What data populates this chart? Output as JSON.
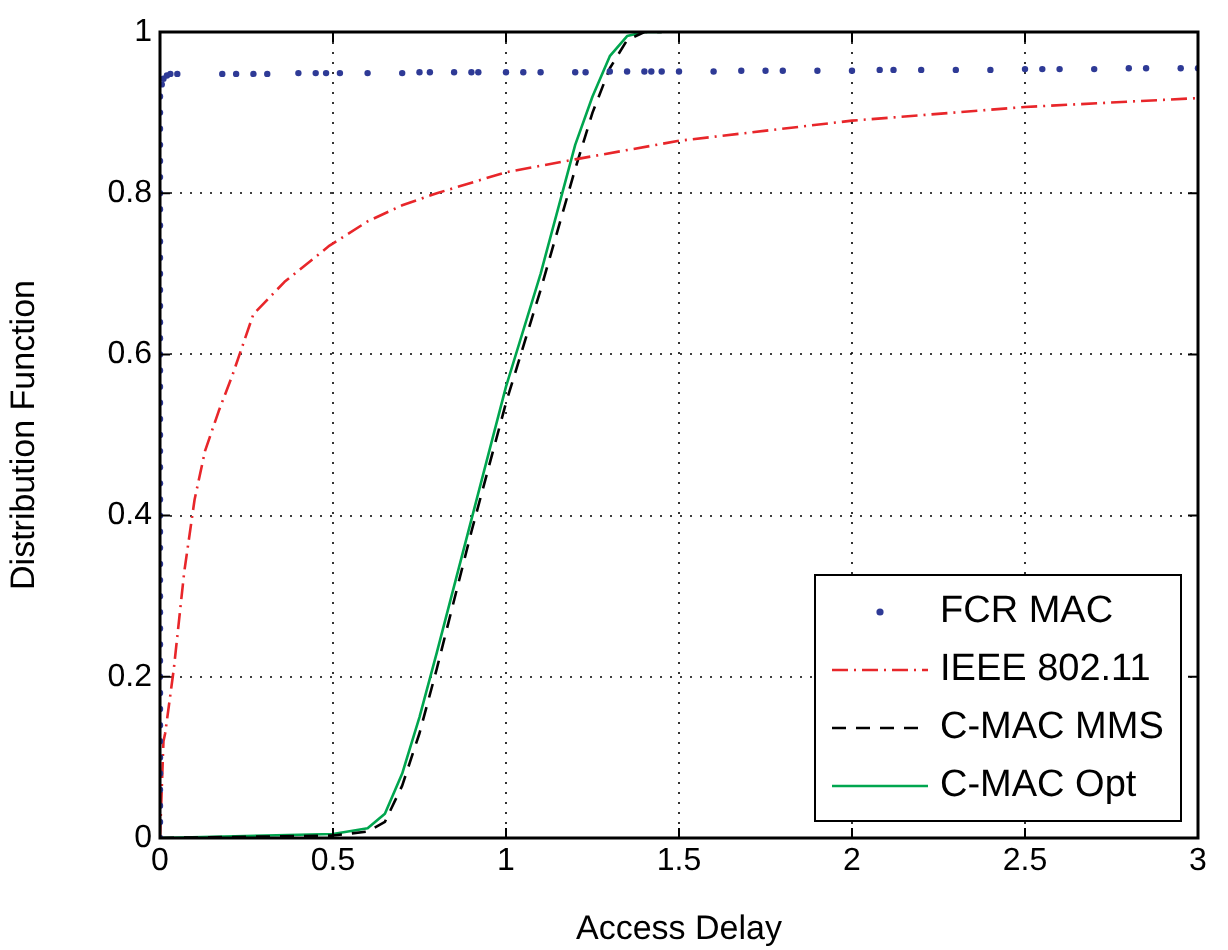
{
  "chart_data": {
    "type": "line",
    "xlabel": "Access Delay",
    "ylabel": "Distribution Function",
    "xlim": [
      0,
      3
    ],
    "xticks": [
      0,
      0.5,
      1,
      1.5,
      2,
      2.5,
      3
    ],
    "ylim": [
      0,
      1
    ],
    "yticks": [
      0,
      0.2,
      0.4,
      0.6,
      0.8,
      1
    ],
    "grid": true,
    "legend": "bottom right",
    "series": [
      {
        "name": "FCR MAC",
        "type": "scatter",
        "marker": "circle",
        "color": "#2e3a96",
        "x": [
          0,
          0,
          0,
          0,
          0,
          0,
          0,
          0,
          0,
          0,
          0,
          0,
          0,
          0,
          0,
          0,
          0,
          0,
          0,
          0,
          0,
          0,
          0,
          0,
          0,
          0,
          0,
          0,
          0,
          0,
          0,
          0,
          0,
          0,
          0,
          0,
          0,
          0,
          0,
          0,
          0,
          0,
          0,
          0,
          0,
          0,
          0,
          0.005,
          0.01,
          0.02,
          0.03,
          0.05,
          0.18,
          0.22,
          0.27,
          0.31,
          0.4,
          0.45,
          0.48,
          0.52,
          0.6,
          0.7,
          0.75,
          0.78,
          0.85,
          0.9,
          0.92,
          1.0,
          1.05,
          1.1,
          1.2,
          1.23,
          1.3,
          1.35,
          1.4,
          1.42,
          1.45,
          1.5,
          1.6,
          1.68,
          1.75,
          1.8,
          1.9,
          2.0,
          2.08,
          2.12,
          2.2,
          2.3,
          2.4,
          2.5,
          2.55,
          2.6,
          2.7,
          2.8,
          2.85,
          2.95,
          3.0
        ],
        "values": [
          0,
          0.02,
          0.04,
          0.06,
          0.08,
          0.1,
          0.12,
          0.14,
          0.16,
          0.18,
          0.2,
          0.22,
          0.24,
          0.26,
          0.28,
          0.3,
          0.32,
          0.34,
          0.36,
          0.38,
          0.4,
          0.42,
          0.44,
          0.46,
          0.48,
          0.5,
          0.52,
          0.54,
          0.56,
          0.58,
          0.6,
          0.62,
          0.64,
          0.66,
          0.68,
          0.7,
          0.72,
          0.74,
          0.76,
          0.78,
          0.8,
          0.82,
          0.84,
          0.86,
          0.88,
          0.9,
          0.92,
          0.935,
          0.942,
          0.946,
          0.948,
          0.948,
          0.948,
          0.948,
          0.948,
          0.948,
          0.949,
          0.949,
          0.949,
          0.949,
          0.949,
          0.949,
          0.95,
          0.95,
          0.95,
          0.95,
          0.95,
          0.95,
          0.95,
          0.95,
          0.95,
          0.95,
          0.951,
          0.951,
          0.951,
          0.951,
          0.951,
          0.951,
          0.951,
          0.952,
          0.952,
          0.952,
          0.952,
          0.952,
          0.953,
          0.953,
          0.953,
          0.953,
          0.953,
          0.954,
          0.954,
          0.954,
          0.954,
          0.955,
          0.955,
          0.955,
          0.955
        ]
      },
      {
        "name": "IEEE 802.11",
        "line_style": "dashdot",
        "marker": "none",
        "color": "#e8262a",
        "x": [
          0,
          0.005,
          0.01,
          0.015,
          0.04,
          0.07,
          0.1,
          0.13,
          0.17,
          0.21,
          0.27,
          0.36,
          0.49,
          0.6,
          0.7,
          0.8,
          1.0,
          1.2,
          1.5,
          2.0,
          2.5,
          3.0
        ],
        "values": [
          0,
          0.06,
          0.12,
          0.13,
          0.21,
          0.33,
          0.42,
          0.48,
          0.53,
          0.575,
          0.65,
          0.69,
          0.735,
          0.765,
          0.785,
          0.8,
          0.826,
          0.842,
          0.865,
          0.89,
          0.907,
          0.918
        ]
      },
      {
        "name": "C-MAC MMS",
        "line_style": "dashed",
        "marker": "none",
        "color": "#000000",
        "x": [
          0,
          0.5,
          0.6,
          0.65,
          0.7,
          0.75,
          0.8,
          0.9,
          1.0,
          1.1,
          1.2,
          1.25,
          1.3,
          1.35,
          1.4,
          1.45
        ],
        "values": [
          0,
          0.003,
          0.008,
          0.02,
          0.065,
          0.13,
          0.21,
          0.38,
          0.54,
          0.68,
          0.83,
          0.9,
          0.955,
          0.99,
          1.0,
          1.0
        ]
      },
      {
        "name": "C-MAC Opt",
        "line_style": "solid",
        "marker": "none",
        "color": "#00a64f",
        "x": [
          0,
          0.5,
          0.6,
          0.65,
          0.7,
          0.75,
          0.8,
          0.9,
          1.0,
          1.1,
          1.2,
          1.25,
          1.3,
          1.35,
          1.4,
          1.45
        ],
        "values": [
          0,
          0.005,
          0.012,
          0.03,
          0.08,
          0.15,
          0.23,
          0.395,
          0.56,
          0.7,
          0.86,
          0.92,
          0.97,
          0.995,
          1.0,
          1.0
        ]
      }
    ]
  }
}
